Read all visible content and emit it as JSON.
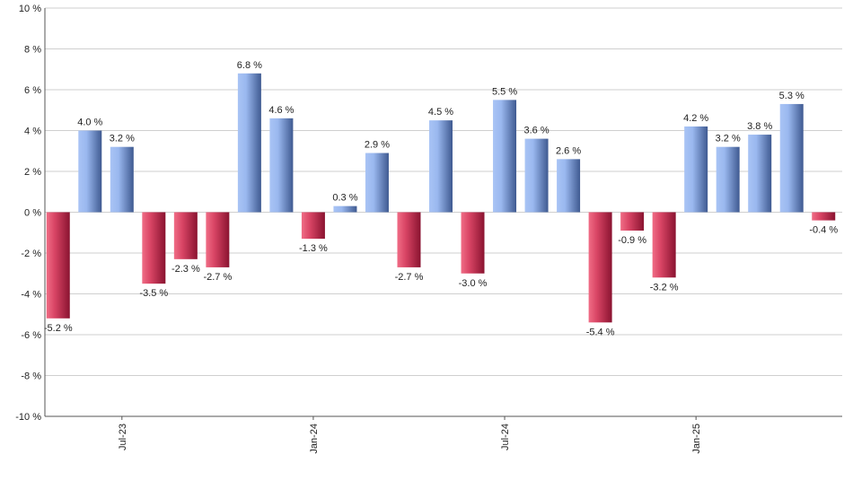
{
  "chart_data": {
    "type": "bar",
    "title": "",
    "xlabel": "",
    "ylabel": "",
    "ylim": [
      -10,
      10
    ],
    "y_ticks": [
      -10,
      -8,
      -6,
      -4,
      -2,
      0,
      2,
      4,
      6,
      8,
      10
    ],
    "y_tick_labels": [
      "-10 %",
      "-8 %",
      "-6 %",
      "-4 %",
      "-2 %",
      "0 %",
      "2 %",
      "4 %",
      "6 %",
      "8 %",
      "10 %"
    ],
    "grid": true,
    "x_tick_labels": [
      {
        "index": 2,
        "label": "Jul-23"
      },
      {
        "index": 8,
        "label": "Jan-24"
      },
      {
        "index": 14,
        "label": "Jul-24"
      },
      {
        "index": 20,
        "label": "Jan-25"
      }
    ],
    "values": [
      -5.2,
      4.0,
      3.2,
      -3.5,
      -2.3,
      -2.7,
      6.8,
      4.6,
      -1.3,
      0.3,
      2.9,
      -2.7,
      4.5,
      -3.0,
      5.5,
      3.6,
      2.6,
      -5.4,
      -0.9,
      -3.2,
      4.2,
      3.2,
      3.8,
      5.3,
      -0.4
    ],
    "value_labels": [
      "-5.2 %",
      "4.0 %",
      "3.2 %",
      "-3.5 %",
      "-2.3 %",
      "-2.7 %",
      "6.8 %",
      "4.6 %",
      "-1.3 %",
      "0.3 %",
      "2.9 %",
      "-2.7 %",
      "4.5 %",
      "-3.0 %",
      "5.5 %",
      "3.6 %",
      "2.6 %",
      "-5.4 %",
      "-0.9 %",
      "-3.2 %",
      "4.2 %",
      "3.2 %",
      "3.8 %",
      "5.3 %",
      "-0.4 %"
    ],
    "colors": {
      "positive_light": "#a9c4f5",
      "positive_dark": "#3f5a91",
      "negative_light": "#f06d86",
      "negative_dark": "#8a1330",
      "grid": "#cfcfcf",
      "axis": "#555555"
    }
  }
}
